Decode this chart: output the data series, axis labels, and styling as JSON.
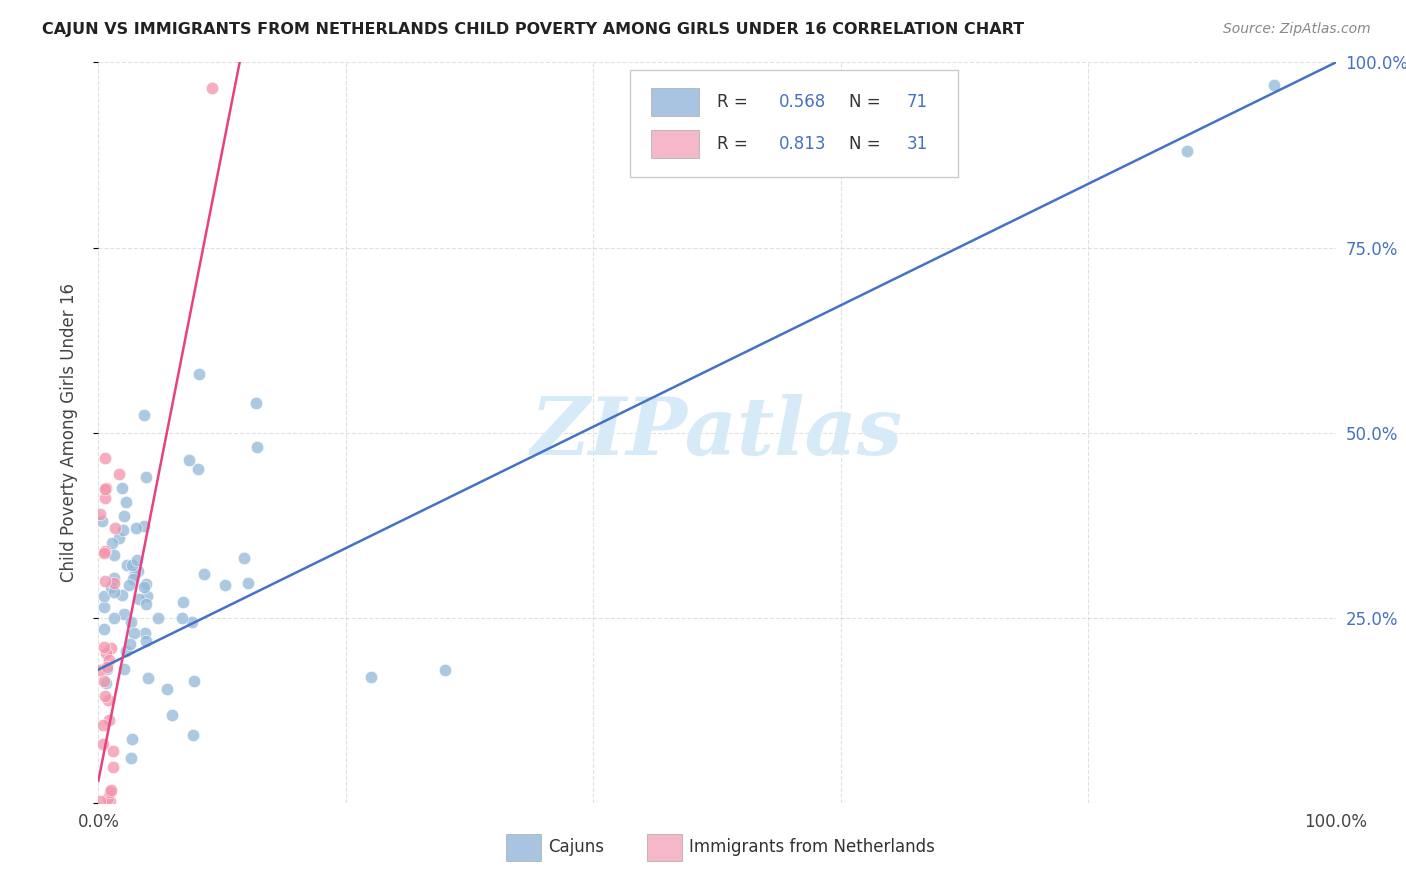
{
  "title": "CAJUN VS IMMIGRANTS FROM NETHERLANDS CHILD POVERTY AMONG GIRLS UNDER 16 CORRELATION CHART",
  "source": "Source: ZipAtlas.com",
  "ylabel": "Child Poverty Among Girls Under 16",
  "cajun_color": "#a8c4e0",
  "cajun_scatter_color": "#92b8d9",
  "netherlands_color": "#f4b8c8",
  "netherlands_scatter_color": "#f492aa",
  "line_blue": "#4472c4",
  "line_pink": "#e84080",
  "watermark_color": "#d6eaf8",
  "background_color": "#ffffff",
  "grid_color": "#cccccc",
  "right_axis_color": "#4472c4",
  "title_color": "#222222",
  "source_color": "#888888",
  "label_color": "#444444"
}
